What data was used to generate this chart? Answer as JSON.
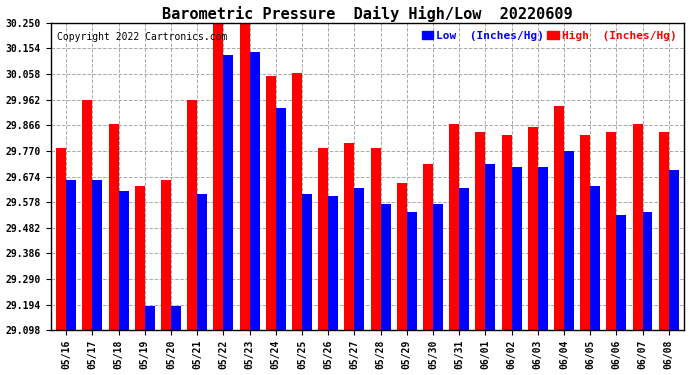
{
  "title": "Barometric Pressure  Daily High/Low  20220609",
  "copyright": "Copyright 2022 Cartronics.com",
  "legend_low": "Low  (Inches/Hg)",
  "legend_high": "High  (Inches/Hg)",
  "dates": [
    "05/16",
    "05/17",
    "05/18",
    "05/19",
    "05/20",
    "05/21",
    "05/22",
    "05/23",
    "05/24",
    "05/25",
    "05/26",
    "05/27",
    "05/28",
    "05/29",
    "05/30",
    "05/31",
    "06/01",
    "06/02",
    "06/03",
    "06/04",
    "06/05",
    "06/06",
    "06/07",
    "06/08"
  ],
  "high_values": [
    29.78,
    29.96,
    29.87,
    29.64,
    29.66,
    29.96,
    30.27,
    30.27,
    30.05,
    30.06,
    29.78,
    29.8,
    29.78,
    29.65,
    29.72,
    29.87,
    29.84,
    29.83,
    29.86,
    29.94,
    29.83,
    29.84,
    29.87,
    29.84
  ],
  "low_values": [
    29.66,
    29.66,
    29.62,
    29.19,
    29.19,
    29.61,
    30.13,
    30.14,
    29.93,
    29.61,
    29.6,
    29.63,
    29.57,
    29.54,
    29.57,
    29.63,
    29.72,
    29.71,
    29.71,
    29.77,
    29.64,
    29.53,
    29.54,
    29.7
  ],
  "ylim_min": 29.098,
  "ylim_max": 30.25,
  "yticks": [
    29.098,
    29.194,
    29.29,
    29.386,
    29.482,
    29.578,
    29.674,
    29.77,
    29.866,
    29.962,
    30.058,
    30.154,
    30.25
  ],
  "bar_color_high": "#ff0000",
  "bar_color_low": "#0000ff",
  "background_color": "#ffffff",
  "title_fontsize": 11,
  "copyright_fontsize": 7,
  "legend_fontsize": 8,
  "tick_fontsize": 7,
  "bar_width": 0.38
}
